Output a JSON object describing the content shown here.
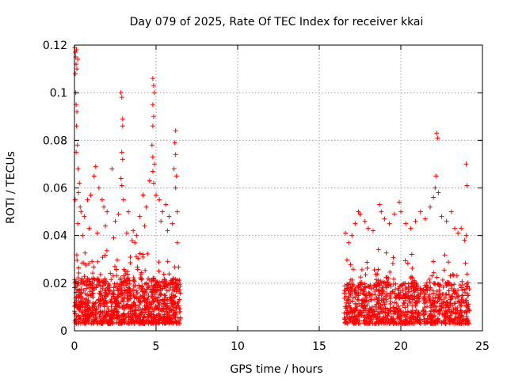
{
  "chart_data": {
    "type": "scatter",
    "title": "Day 079 of 2025, Rate Of TEC Index for receiver kkai",
    "xlabel": "GPS time / hours",
    "ylabel": "ROTI / TECUs",
    "xlim": [
      0,
      25
    ],
    "ylim": [
      0,
      0.12
    ],
    "x_ticks": [
      0,
      5,
      10,
      15,
      20,
      25
    ],
    "x_tick_labels": [
      "0",
      "5",
      "10",
      "15",
      "20",
      "25"
    ],
    "y_ticks": [
      0,
      0.02,
      0.04,
      0.06,
      0.08,
      0.1,
      0.12
    ],
    "y_tick_labels": [
      "0",
      "0.02",
      "0.04",
      "0.06",
      "0.08",
      "0.1",
      "0.12"
    ],
    "grid": true,
    "marker": "plus",
    "color": "#ff0000",
    "series": [
      {
        "points": [
          [
            0.02,
            0.119
          ],
          [
            0.05,
            0.117
          ],
          [
            0.08,
            0.115
          ],
          [
            0.1,
            0.112
          ],
          [
            0.12,
            0.118
          ],
          [
            0.15,
            0.11
          ],
          [
            0.05,
            0.108
          ],
          [
            0.2,
            0.114
          ],
          [
            0.08,
            0.1
          ],
          [
            0.1,
            0.095
          ],
          [
            0.15,
            0.092
          ],
          [
            0.12,
            0.086
          ],
          [
            0.18,
            0.078
          ],
          [
            0.1,
            0.075
          ],
          [
            0.22,
            0.068
          ],
          [
            0.3,
            0.062
          ],
          [
            0.25,
            0.058
          ],
          [
            0.35,
            0.052
          ],
          [
            0.05,
            0.055
          ],
          [
            0.4,
            0.05
          ],
          [
            0.6,
            0.048
          ],
          [
            0.8,
            0.055
          ],
          [
            1.0,
            0.057
          ],
          [
            1.2,
            0.065
          ],
          [
            1.3,
            0.069
          ],
          [
            1.5,
            0.06
          ],
          [
            1.7,
            0.055
          ],
          [
            1.8,
            0.052
          ],
          [
            2.0,
            0.05
          ],
          [
            2.3,
            0.068
          ],
          [
            2.5,
            0.046
          ],
          [
            2.7,
            0.049
          ],
          [
            2.85,
            0.1
          ],
          [
            2.9,
            0.098
          ],
          [
            2.95,
            0.089
          ],
          [
            2.95,
            0.086
          ],
          [
            2.9,
            0.075
          ],
          [
            2.95,
            0.072
          ],
          [
            2.85,
            0.064
          ],
          [
            2.9,
            0.061
          ],
          [
            3.0,
            0.055
          ],
          [
            3.3,
            0.05
          ],
          [
            3.6,
            0.042
          ],
          [
            3.8,
            0.04
          ],
          [
            4.0,
            0.048
          ],
          [
            4.2,
            0.057
          ],
          [
            4.4,
            0.052
          ],
          [
            4.6,
            0.063
          ],
          [
            4.8,
            0.106
          ],
          [
            4.85,
            0.103
          ],
          [
            4.9,
            0.1
          ],
          [
            4.8,
            0.095
          ],
          [
            4.85,
            0.09
          ],
          [
            4.8,
            0.086
          ],
          [
            4.75,
            0.078
          ],
          [
            4.8,
            0.073
          ],
          [
            4.9,
            0.07
          ],
          [
            4.8,
            0.067
          ],
          [
            4.85,
            0.062
          ],
          [
            5.0,
            0.057
          ],
          [
            5.2,
            0.055
          ],
          [
            5.4,
            0.05
          ],
          [
            5.6,
            0.053
          ],
          [
            5.8,
            0.048
          ],
          [
            6.0,
            0.045
          ],
          [
            6.2,
            0.084
          ],
          [
            6.15,
            0.079
          ],
          [
            6.2,
            0.074
          ],
          [
            6.1,
            0.068
          ],
          [
            6.25,
            0.065
          ],
          [
            6.2,
            0.06
          ],
          [
            6.3,
            0.05
          ],
          [
            0.2,
            0.045
          ],
          [
            0.5,
            0.04
          ],
          [
            0.9,
            0.043
          ],
          [
            1.4,
            0.041
          ],
          [
            1.9,
            0.044
          ],
          [
            2.4,
            0.039
          ],
          [
            3.2,
            0.041
          ],
          [
            3.7,
            0.037
          ],
          [
            4.3,
            0.044
          ],
          [
            5.3,
            0.046
          ],
          [
            5.7,
            0.042
          ],
          [
            6.3,
            0.037
          ]
        ],
        "band": {
          "from": 0,
          "to": 6.5,
          "ymin": 0.003,
          "ymax": 0.038,
          "count": 1100
        }
      },
      {
        "points": [
          [
            16.6,
            0.041
          ],
          [
            16.8,
            0.037
          ],
          [
            17.0,
            0.04
          ],
          [
            17.2,
            0.045
          ],
          [
            17.4,
            0.05
          ],
          [
            17.5,
            0.049
          ],
          [
            17.8,
            0.046
          ],
          [
            18.0,
            0.043
          ],
          [
            18.3,
            0.042
          ],
          [
            18.7,
            0.053
          ],
          [
            18.8,
            0.05
          ],
          [
            19.0,
            0.047
          ],
          [
            19.3,
            0.045
          ],
          [
            19.6,
            0.049
          ],
          [
            19.9,
            0.054
          ],
          [
            20.0,
            0.05
          ],
          [
            20.3,
            0.045
          ],
          [
            20.6,
            0.043
          ],
          [
            20.9,
            0.046
          ],
          [
            21.2,
            0.05
          ],
          [
            21.5,
            0.047
          ],
          [
            21.8,
            0.052
          ],
          [
            22.0,
            0.056
          ],
          [
            22.1,
            0.06
          ],
          [
            22.15,
            0.065
          ],
          [
            22.2,
            0.083
          ],
          [
            22.25,
            0.081
          ],
          [
            22.3,
            0.058
          ],
          [
            22.5,
            0.048
          ],
          [
            22.8,
            0.046
          ],
          [
            23.1,
            0.05
          ],
          [
            23.3,
            0.043
          ],
          [
            23.5,
            0.041
          ],
          [
            23.7,
            0.043
          ],
          [
            24.0,
            0.07
          ],
          [
            24.05,
            0.061
          ],
          [
            24.0,
            0.04
          ],
          [
            23.9,
            0.038
          ]
        ],
        "band": {
          "from": 16.5,
          "to": 24.2,
          "ymin": 0.003,
          "ymax": 0.035,
          "count": 1000
        }
      }
    ]
  }
}
